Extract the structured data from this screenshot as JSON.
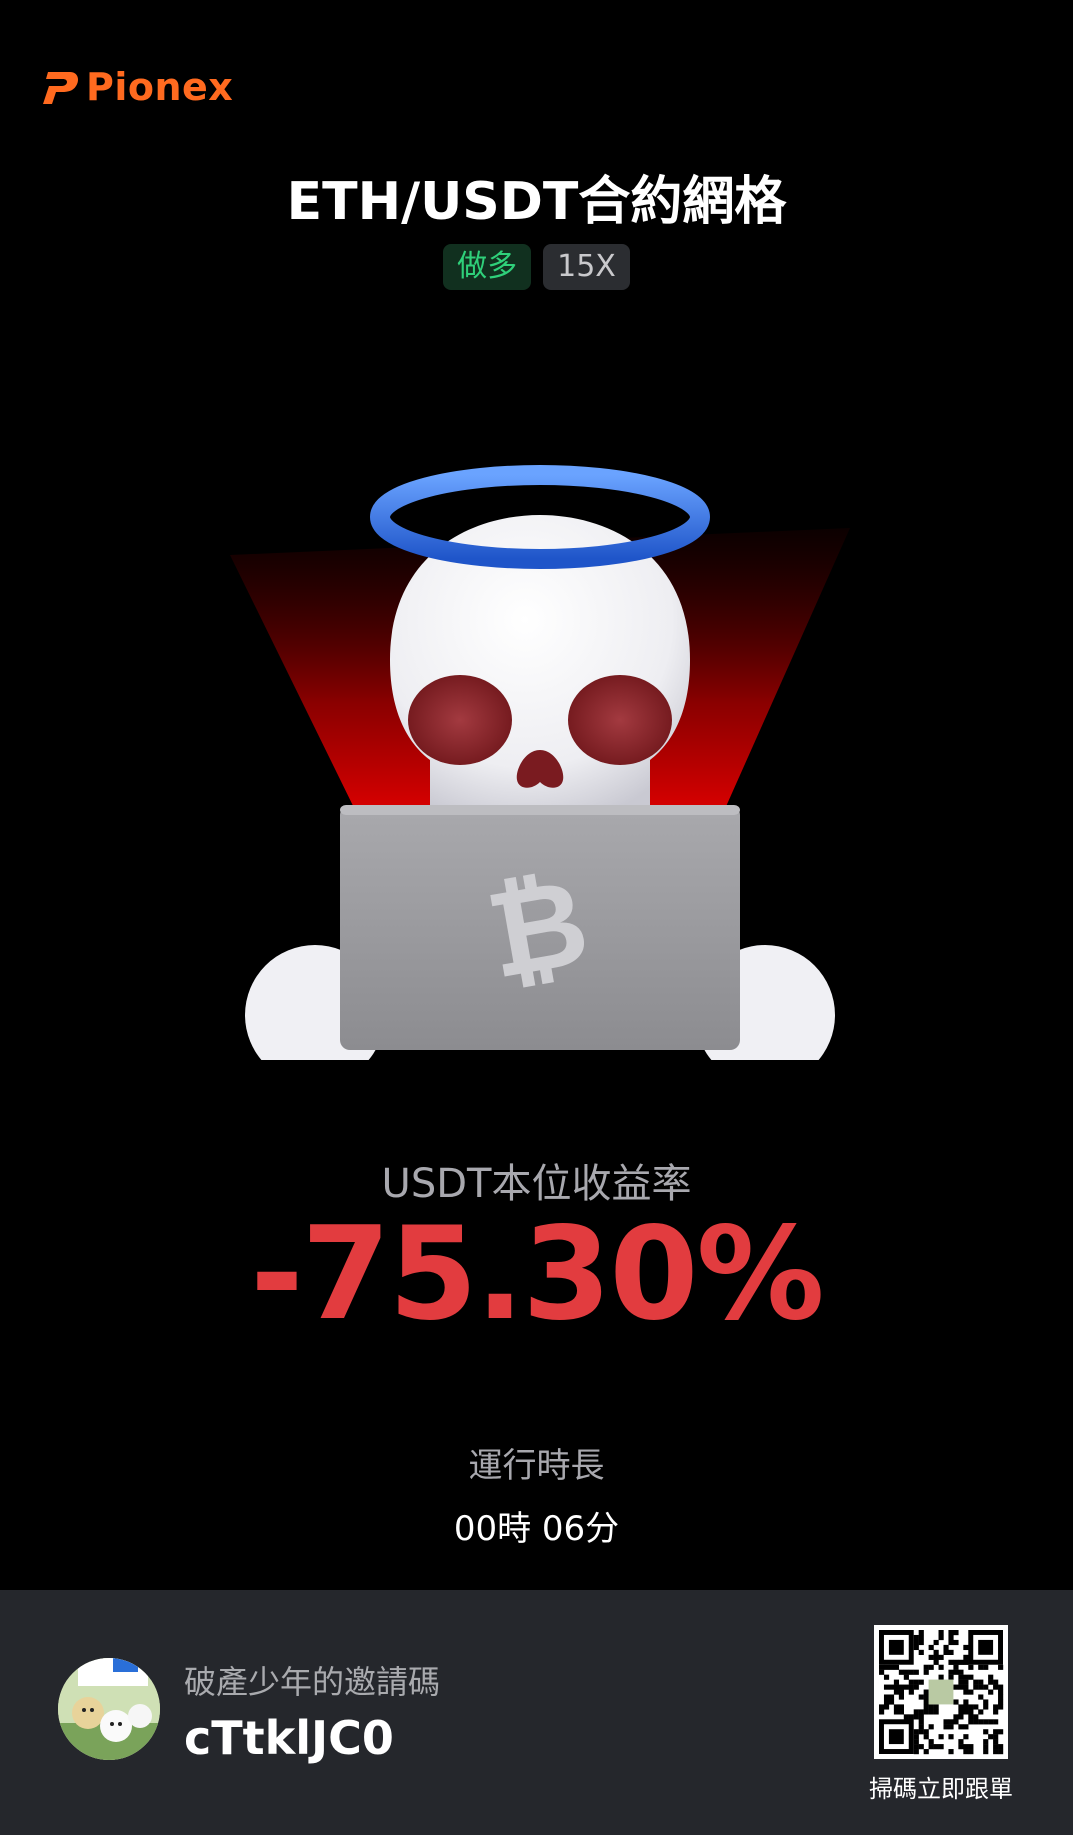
{
  "brand": {
    "name": "Pionex",
    "color": "#ff6a1f",
    "icon": "pionex-logo-icon"
  },
  "bot": {
    "title": "ETH/USDT合約網格",
    "direction_tag": "做多",
    "leverage_tag": "15X"
  },
  "illustration": {
    "icon": "skull-with-halo-laptop-bitcoin-icon"
  },
  "performance": {
    "return_label": "USDT本位收益率",
    "return_value": "-75.30%",
    "return_color": "#e23c3f",
    "runtime_label": "運行時長",
    "runtime_value": "00時 06分"
  },
  "footer": {
    "avatar_icon": "user-avatar",
    "invite_label": "破產少年的邀請碼",
    "invite_code": "cTtklJC0",
    "qr_icon": "qr-code-icon",
    "qr_caption": "掃碼立即跟單"
  }
}
